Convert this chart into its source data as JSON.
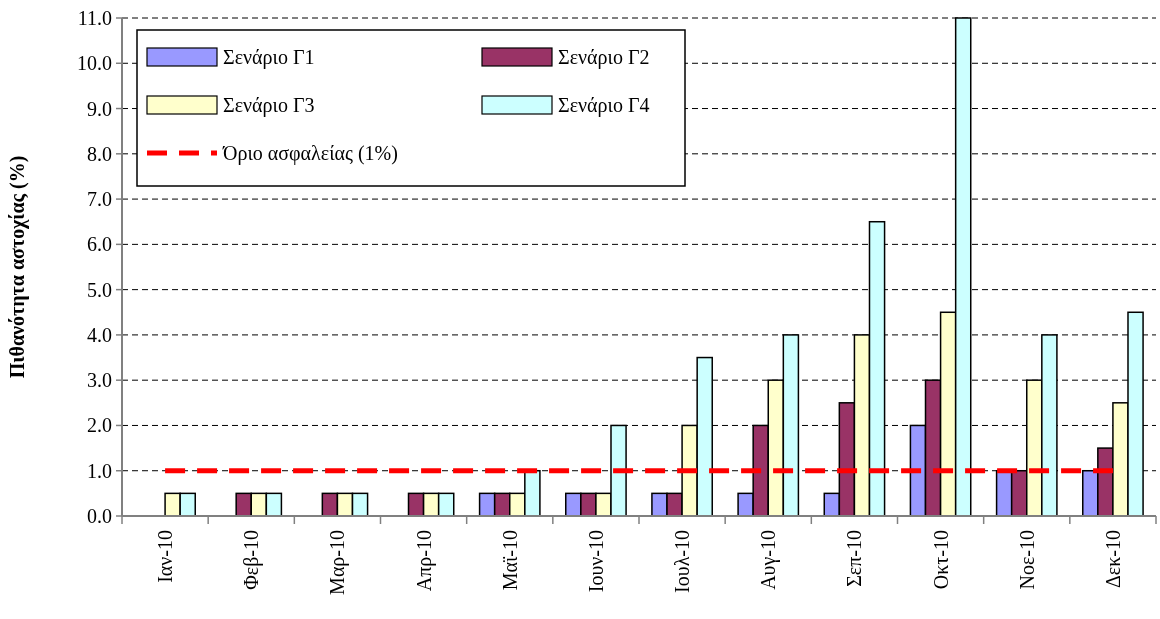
{
  "chart_data": {
    "type": "bar",
    "ylabel": "Πιθανότητα αστοχίας (%)",
    "categories": [
      "Ιαν-10",
      "Φεβ-10",
      "Μαρ-10",
      "Απρ-10",
      "Μαϊ-10",
      "Ιουν-10",
      "Ιουλ-10",
      "Αυγ-10",
      "Σεπ-10",
      "Οκτ-10",
      "Νοε-10",
      "Δεκ-10"
    ],
    "series": [
      {
        "name": "Σενάριο Γ1",
        "color": "#9999ff",
        "values": [
          0,
          0,
          0,
          0,
          0.5,
          0.5,
          0.5,
          0.5,
          0.5,
          2.0,
          1.0,
          1.0
        ]
      },
      {
        "name": "Σενάριο Γ2",
        "color": "#993366",
        "values": [
          0,
          0.5,
          0.5,
          0.5,
          0.5,
          0.5,
          0.5,
          2.0,
          2.5,
          3.0,
          1.0,
          1.5
        ]
      },
      {
        "name": "Σενάριο Γ3",
        "color": "#ffffcc",
        "values": [
          0.5,
          0.5,
          0.5,
          0.5,
          0.5,
          0.5,
          2.0,
          3.0,
          4.0,
          4.5,
          3.0,
          2.5
        ]
      },
      {
        "name": "Σενάριο Γ4",
        "color": "#ccffff",
        "values": [
          0.5,
          0.5,
          0.5,
          0.5,
          1.0,
          2.0,
          3.5,
          4.0,
          6.5,
          11.0,
          4.0,
          4.5
        ]
      },
      {
        "name": "Όριο ασφαλείας (1%)",
        "type": "line",
        "color": "#ff0000",
        "line_style": "dashed",
        "values": [
          1,
          1,
          1,
          1,
          1,
          1,
          1,
          1,
          1,
          1,
          1,
          1
        ]
      }
    ],
    "ylim": [
      0,
      11
    ],
    "yticks": [
      {
        "value": 0,
        "label": "0.0"
      },
      {
        "value": 1,
        "label": "1.0"
      },
      {
        "value": 2,
        "label": "2.0"
      },
      {
        "value": 3,
        "label": "3.0"
      },
      {
        "value": 4,
        "label": "4.0"
      },
      {
        "value": 5,
        "label": "5.0"
      },
      {
        "value": 6,
        "label": "6.0"
      },
      {
        "value": 7,
        "label": "7.0"
      },
      {
        "value": 8,
        "label": "8.0"
      },
      {
        "value": 9,
        "label": "9.0"
      },
      {
        "value": 10,
        "label": "10.0"
      },
      {
        "value": 11,
        "label": "11.0"
      }
    ],
    "grid": "y",
    "legend": "top left"
  }
}
